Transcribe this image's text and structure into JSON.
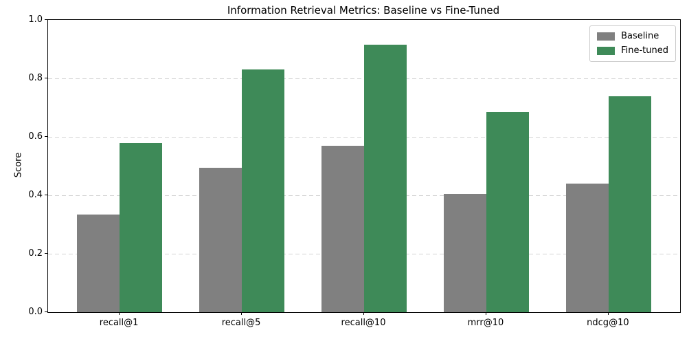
{
  "chart_data": {
    "type": "bar",
    "title": "Information Retrieval Metrics: Baseline vs Fine-Tuned",
    "ylabel": "Score",
    "xlabel": "",
    "categories": [
      "recall@1",
      "recall@5",
      "recall@10",
      "mrr@10",
      "ndcg@10"
    ],
    "series": [
      {
        "name": "Baseline",
        "color": "#808080",
        "values": [
          0.335,
          0.495,
          0.57,
          0.405,
          0.44
        ]
      },
      {
        "name": "Fine-tuned",
        "color": "#3e8a58",
        "values": [
          0.58,
          0.83,
          0.915,
          0.685,
          0.74
        ]
      }
    ],
    "ylim": [
      0.0,
      1.0
    ],
    "yticks": [
      "0.0",
      "0.2",
      "0.4",
      "0.6",
      "0.8",
      "1.0"
    ],
    "grid": "horizontal-dashed",
    "legend_position": "upper-right"
  }
}
